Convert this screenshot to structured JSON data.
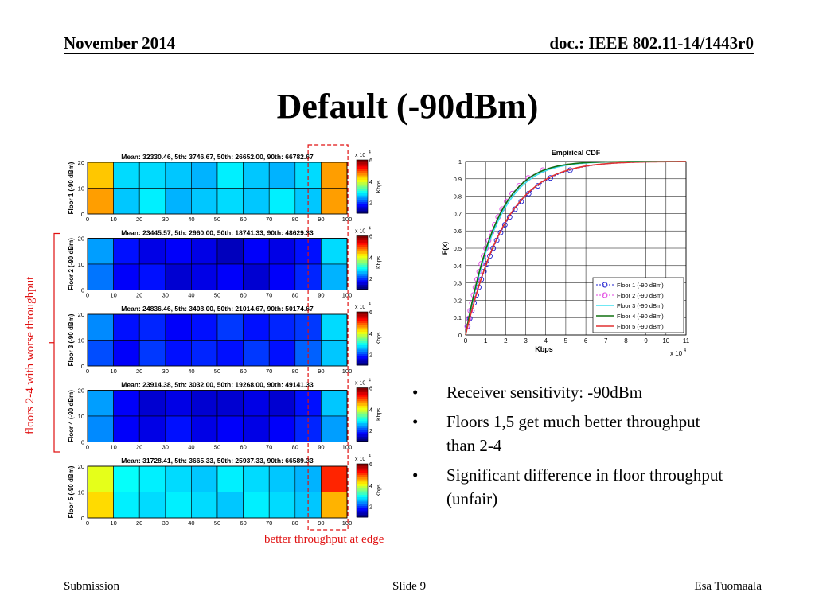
{
  "header": {
    "date": "November 2014",
    "doc": "doc.: IEEE 802.11-14/1443r0"
  },
  "title": "Default (-90dBm)",
  "bullets": [
    "Receiver sensitivity: -90dBm",
    "Floors 1,5 get much better throughput than 2-4",
    "Significant difference in floor throughput (unfair)"
  ],
  "annotations": {
    "side": "floors 2-4 with worse throughput",
    "edge": "better throughput at edge"
  },
  "footer": {
    "left": "Submission",
    "center": "Slide 9",
    "right": "Esa Tuomaala"
  },
  "chart_data": [
    {
      "type": "heatmap",
      "floors": [
        {
          "title": "Mean: 32330.46, 5th: 3746.67, 50th: 26652.00, 90th: 66782.67",
          "ylabel": "Floor 1 (-90 dBm)",
          "values": [
            [
              4.4,
              2.7,
              2.7,
              2.6,
              2.5,
              2.8,
              2.6,
              2.5,
              2.7,
              4.6
            ],
            [
              4.6,
              2.6,
              2.8,
              2.5,
              2.6,
              2.7,
              2.6,
              2.8,
              2.6,
              4.6
            ]
          ]
        },
        {
          "title": "Mean: 23445.57, 5th: 2960.00, 50th: 18741.33, 90th: 48629.33",
          "ylabel": "Floor 2 (-90 dBm)",
          "values": [
            [
              2.4,
              1.7,
              1.5,
              1.6,
              1.5,
              1.3,
              1.6,
              1.5,
              1.7,
              2.7
            ],
            [
              2.2,
              1.6,
              1.7,
              1.4,
              1.5,
              1.6,
              1.4,
              1.6,
              1.8,
              2.5
            ]
          ]
        },
        {
          "title": "Mean: 24836.46, 5th: 3408.00, 50th: 21014.67, 90th: 50174.67",
          "ylabel": "Floor 3 (-90 dBm)",
          "values": [
            [
              2.3,
              1.7,
              1.8,
              1.6,
              1.7,
              1.9,
              1.7,
              1.8,
              1.9,
              2.7
            ],
            [
              2.0,
              1.6,
              1.9,
              1.7,
              1.8,
              1.7,
              1.9,
              1.7,
              2.1,
              2.6
            ]
          ]
        },
        {
          "title": "Mean: 23914.38, 5th: 3032.00, 50th: 19268.00, 90th: 49141.33",
          "ylabel": "Floor 4 (-90 dBm)",
          "values": [
            [
              2.4,
              1.6,
              1.4,
              1.5,
              1.4,
              1.4,
              1.5,
              1.4,
              1.7,
              2.6
            ],
            [
              2.3,
              1.6,
              1.5,
              1.7,
              1.5,
              1.6,
              1.5,
              1.6,
              1.8,
              2.4
            ]
          ]
        },
        {
          "title": "Mean: 31728.41, 5th: 3665.33, 50th: 25937.33, 90th: 66589.33",
          "ylabel": "Floor 5 (-90 dBm)",
          "values": [
            [
              4.0,
              2.9,
              2.8,
              2.7,
              2.6,
              2.8,
              2.7,
              2.6,
              2.5,
              5.2
            ],
            [
              4.3,
              2.8,
              2.7,
              2.8,
              2.7,
              2.6,
              2.8,
              2.7,
              2.6,
              4.5
            ]
          ]
        }
      ],
      "xticks": [
        "0",
        "10",
        "20",
        "30",
        "40",
        "50",
        "60",
        "70",
        "80",
        "90",
        "100"
      ],
      "yticks": [
        "0",
        "10",
        "20"
      ],
      "colorbar": {
        "ticks": [
          "2",
          "4",
          "6"
        ],
        "label": "Kbps",
        "exponent": "x 10",
        "exp_power": "4",
        "min": 1,
        "max": 6
      }
    },
    {
      "type": "line",
      "title": "Empirical CDF",
      "xlabel": "Kbps",
      "ylabel": "F(x)",
      "x_exponent": "x 10",
      "x_exp_power": "4",
      "xlim": [
        0,
        11
      ],
      "ylim": [
        0,
        1
      ],
      "xticks": [
        "0",
        "1",
        "2",
        "3",
        "4",
        "5",
        "6",
        "7",
        "8",
        "9",
        "10",
        "11"
      ],
      "yticks": [
        "0",
        "0.1",
        "0.2",
        "0.3",
        "0.4",
        "0.5",
        "0.6",
        "0.7",
        "0.8",
        "0.9",
        "1"
      ],
      "series": [
        {
          "name": "Floor 1 (-90 dBm)",
          "color": "#2020d0",
          "dash": "2,2",
          "marker": true,
          "scale": 4.6
        },
        {
          "name": "Floor 2 (-90 dBm)",
          "color": "#e040e0",
          "dash": "2,2",
          "marker": true,
          "scale": 3.4
        },
        {
          "name": "Floor 3 (-90 dBm)",
          "color": "#40e0f0",
          "dash": "",
          "marker": false,
          "scale": 3.6
        },
        {
          "name": "Floor 4 (-90 dBm)",
          "color": "#107010",
          "dash": "",
          "marker": false,
          "scale": 3.45
        },
        {
          "name": "Floor 5 (-90 dBm)",
          "color": "#e03030",
          "dash": "",
          "marker": false,
          "scale": 4.5
        }
      ]
    }
  ]
}
